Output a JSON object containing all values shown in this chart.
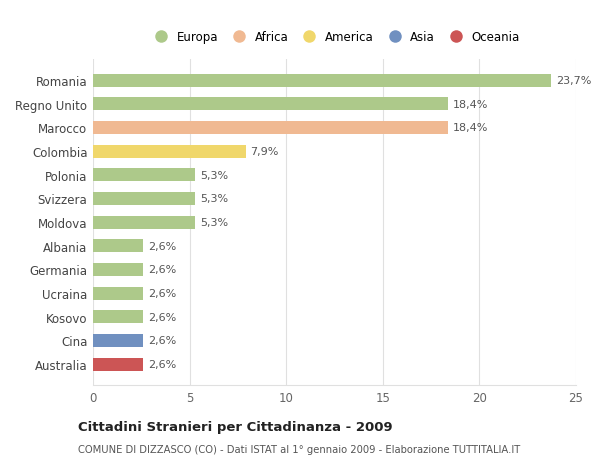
{
  "countries": [
    "Romania",
    "Regno Unito",
    "Marocco",
    "Colombia",
    "Polonia",
    "Svizzera",
    "Moldova",
    "Albania",
    "Germania",
    "Ucraina",
    "Kosovo",
    "Cina",
    "Australia"
  ],
  "values": [
    23.7,
    18.4,
    18.4,
    7.9,
    5.3,
    5.3,
    5.3,
    2.6,
    2.6,
    2.6,
    2.6,
    2.6,
    2.6
  ],
  "labels": [
    "23,7%",
    "18,4%",
    "18,4%",
    "7,9%",
    "5,3%",
    "5,3%",
    "5,3%",
    "2,6%",
    "2,6%",
    "2,6%",
    "2,6%",
    "2,6%",
    "2,6%"
  ],
  "continents": [
    "Europa",
    "Europa",
    "Africa",
    "America",
    "Europa",
    "Europa",
    "Europa",
    "Europa",
    "Europa",
    "Europa",
    "Europa",
    "Asia",
    "Oceania"
  ],
  "colors": {
    "Europa": "#adc98a",
    "Africa": "#f0b992",
    "America": "#f0d76b",
    "Asia": "#7090c0",
    "Oceania": "#cc5555"
  },
  "legend_order": [
    "Europa",
    "Africa",
    "America",
    "Asia",
    "Oceania"
  ],
  "title": "Cittadini Stranieri per Cittadinanza - 2009",
  "subtitle": "COMUNE DI DIZZASCO (CO) - Dati ISTAT al 1° gennaio 2009 - Elaborazione TUTTITALIA.IT",
  "xlim": [
    0,
    25
  ],
  "background_color": "#ffffff",
  "grid_color": "#e0e0e0",
  "bar_height": 0.55
}
